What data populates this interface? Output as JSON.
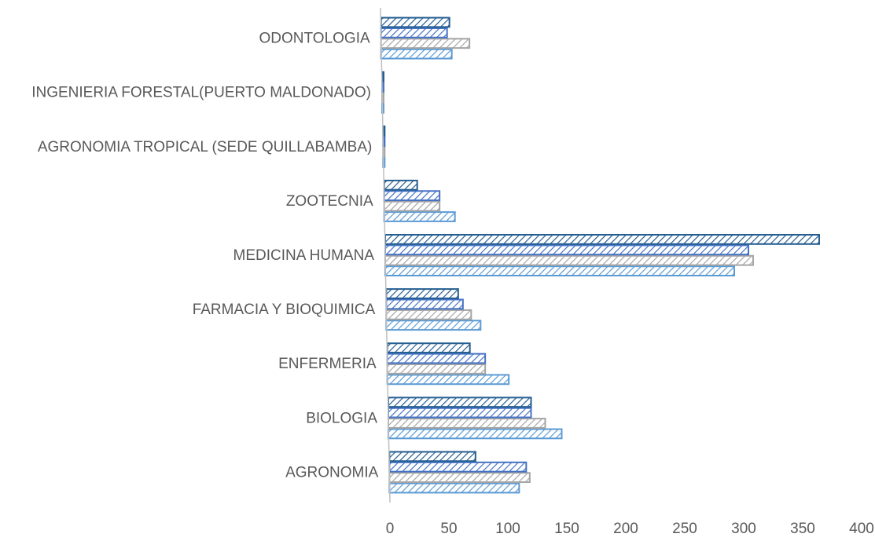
{
  "chart_data": {
    "type": "bar",
    "orientation": "horizontal",
    "categories": [
      "AGRONOMIA",
      "BIOLOGIA",
      "ENFERMERIA",
      "FARMACIA Y BIOQUIMICA",
      "MEDICINA HUMANA",
      "ZOOTECNIA",
      "AGRONOMIA TROPICAL (SEDE QUILLABAMBA)",
      "INGENIERIA FORESTAL(PUERTO MALDONADO)",
      "ODONTOLOGIA"
    ],
    "series": [
      {
        "color": "#5b9bd5",
        "values": [
          110,
          147,
          103,
          80,
          296,
          60,
          0,
          0,
          60
        ]
      },
      {
        "color": "#a5a5a5",
        "values": [
          119,
          133,
          83,
          72,
          312,
          47,
          0,
          0,
          75
        ]
      },
      {
        "color": "#4472c4",
        "values": [
          116,
          121,
          83,
          65,
          308,
          47,
          0,
          0,
          56
        ]
      },
      {
        "color": "#255e91",
        "values": [
          73,
          121,
          70,
          61,
          368,
          28,
          0,
          0,
          58
        ]
      }
    ],
    "xlim": [
      0,
      400
    ],
    "xticks": [
      "0",
      "50",
      "100",
      "150",
      "200",
      "250",
      "300",
      "350",
      "400"
    ],
    "title": "",
    "xlabel": "",
    "ylabel": "",
    "legend": "none",
    "grid": false,
    "fill_pattern": "diagonal-hatch"
  }
}
